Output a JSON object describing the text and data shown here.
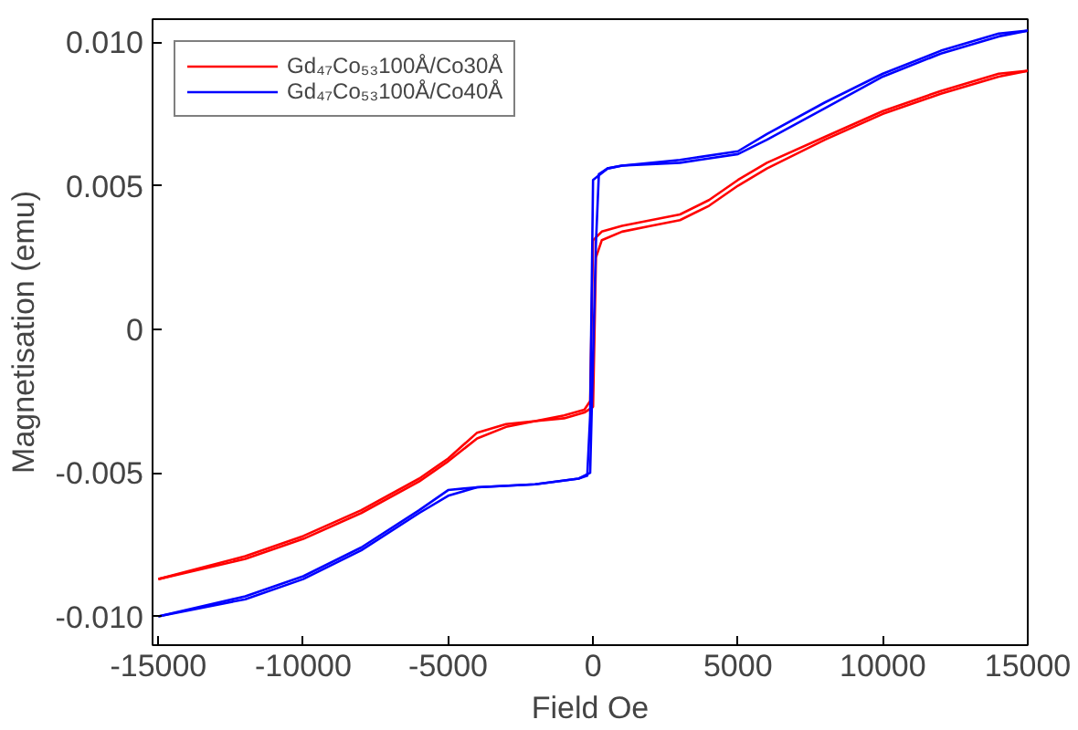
{
  "chart_data": {
    "type": "line",
    "xlabel": "Field Oe",
    "ylabel": "Magnetisation (emu)",
    "xlim": [
      -15200,
      15000
    ],
    "ylim": [
      -0.011,
      0.0108
    ],
    "xticks": [
      -15000,
      -10000,
      -5000,
      0,
      5000,
      10000,
      15000
    ],
    "yticks": [
      {
        "value": -0.01,
        "label": "-0.010"
      },
      -0.005,
      0,
      0.005,
      {
        "value": 0.01,
        "label": "0.010"
      }
    ],
    "grid": false,
    "legend": "top left",
    "marker": "none",
    "line_style": "solid",
    "series": [
      {
        "name": "Gd₄₇Co₅₃100Å/Co30Å",
        "color": "#ff0000",
        "x": [
          -15000,
          -12000,
          -10000,
          -8000,
          -6000,
          -5000,
          -4000,
          -3000,
          -2000,
          -1000,
          -300,
          0,
          100,
          300,
          1000,
          2000,
          3000,
          4000,
          5000,
          6000,
          8000,
          10000,
          12000,
          14000,
          15000
        ],
        "values": [
          -0.0087,
          -0.008,
          -0.0073,
          -0.0064,
          -0.0053,
          -0.0046,
          -0.0038,
          -0.0034,
          -0.0032,
          -0.0031,
          -0.0029,
          -0.0027,
          0.0025,
          0.0031,
          0.0034,
          0.0036,
          0.0038,
          0.0043,
          0.005,
          0.0056,
          0.0066,
          0.0075,
          0.0082,
          0.0088,
          0.009
        ]
      },
      {
        "color": "#ff0000",
        "x": [
          -15000,
          -12000,
          -10000,
          -8000,
          -6000,
          -5000,
          -4000,
          -3000,
          -2000,
          -1000,
          -300,
          -100,
          0,
          300,
          1000,
          2000,
          3000,
          4000,
          5000,
          6000,
          8000,
          10000,
          12000,
          14000,
          15000
        ],
        "values": [
          -0.0087,
          -0.0079,
          -0.0072,
          -0.0063,
          -0.0052,
          -0.0045,
          -0.0036,
          -0.0033,
          -0.0032,
          -0.003,
          -0.0028,
          -0.0025,
          0.0031,
          0.0034,
          0.0036,
          0.0038,
          0.004,
          0.0045,
          0.0052,
          0.0058,
          0.0067,
          0.0076,
          0.0083,
          0.0089,
          0.009
        ]
      },
      {
        "name": "Gd₄₇Co₅₃100Å/Co40Å",
        "color": "#0000ff",
        "x": [
          -15000,
          -12000,
          -10000,
          -8000,
          -6000,
          -5000,
          -4000,
          -2000,
          -500,
          -100,
          100,
          200,
          500,
          1000,
          3000,
          5000,
          6000,
          8000,
          10000,
          12000,
          14000,
          15000
        ],
        "values": [
          -0.01,
          -0.0093,
          -0.0086,
          -0.0076,
          -0.0063,
          -0.0056,
          -0.0055,
          -0.0054,
          -0.0052,
          -0.005,
          0.003,
          0.0054,
          0.0056,
          0.0057,
          0.0058,
          0.0061,
          0.0066,
          0.0077,
          0.0088,
          0.0096,
          0.0102,
          0.0104
        ]
      },
      {
        "color": "#0000ff",
        "x": [
          -15000,
          -12000,
          -10000,
          -8000,
          -6000,
          -5000,
          -4000,
          -2000,
          -500,
          -200,
          -100,
          0,
          500,
          1000,
          3000,
          5000,
          6000,
          8000,
          10000,
          12000,
          14000,
          15000
        ],
        "values": [
          -0.01,
          -0.0094,
          -0.0087,
          -0.0077,
          -0.0064,
          -0.0058,
          -0.0055,
          -0.0054,
          -0.0052,
          -0.0051,
          -0.003,
          0.0052,
          0.0056,
          0.0057,
          0.0059,
          0.0062,
          0.0068,
          0.0079,
          0.0089,
          0.0097,
          0.0103,
          0.0104
        ]
      }
    ]
  }
}
